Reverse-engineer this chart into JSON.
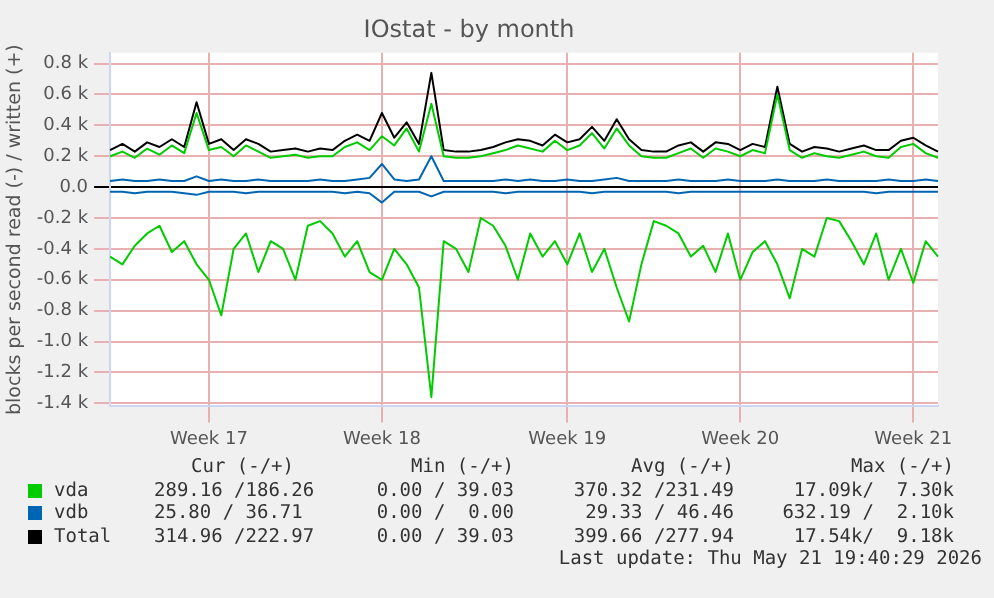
{
  "chart_data": {
    "type": "line",
    "title": "IOstat - by month",
    "ylabel": "blocks per second read (-) / written (+)",
    "categories": [
      null,
      null,
      null,
      null,
      null,
      null,
      null,
      null,
      "Week 17",
      null,
      null,
      null,
      null,
      null,
      null,
      null,
      null,
      null,
      null,
      null,
      null,
      null,
      "Week 18",
      null,
      null,
      null,
      null,
      null,
      null,
      null,
      null,
      null,
      null,
      null,
      null,
      null,
      null,
      "Week 19",
      null,
      null,
      null,
      null,
      null,
      null,
      null,
      null,
      null,
      null,
      null,
      null,
      null,
      "Week 20",
      null,
      null,
      null,
      null,
      null,
      null,
      null,
      null,
      null,
      null,
      null,
      null,
      null,
      "Week 21",
      null,
      null
    ],
    "ylim": [
      -1.42,
      0.87
    ],
    "yticks": [
      {
        "value": -1.4,
        "label": "-1.4 k"
      },
      {
        "value": -1.2,
        "label": "-1.2 k"
      },
      {
        "value": -1.0,
        "label": "-1.0 k"
      },
      {
        "value": -0.8,
        "label": "-0.8 k"
      },
      {
        "value": -0.6,
        "label": "-0.6 k"
      },
      {
        "value": -0.4,
        "label": "-0.4 k"
      },
      {
        "value": -0.2,
        "label": "-0.2 k"
      },
      {
        "value": 0,
        "label": "0.0"
      },
      {
        "value": 0.2,
        "label": "0.2 k"
      },
      {
        "value": 0.4,
        "label": "0.4 k"
      },
      {
        "value": 0.6,
        "label": "0.6 k"
      },
      {
        "value": 0.8,
        "label": "0.8 k"
      }
    ],
    "grid": true,
    "legend": "bottom",
    "marker": "none",
    "line_style": "solid",
    "series": [
      {
        "name": "vda",
        "color": "#00cc00",
        "values": [
          0.2,
          0.23,
          0.19,
          0.25,
          0.21,
          0.27,
          0.22,
          0.48,
          0.24,
          0.26,
          0.2,
          0.27,
          0.23,
          0.19,
          0.2,
          0.21,
          0.19,
          0.2,
          0.2,
          0.26,
          0.29,
          0.24,
          0.33,
          0.27,
          0.38,
          0.23,
          0.54,
          0.2,
          0.19,
          0.19,
          0.2,
          0.22,
          0.24,
          0.27,
          0.25,
          0.23,
          0.3,
          0.24,
          0.27,
          0.35,
          0.25,
          0.38,
          0.27,
          0.2,
          0.19,
          0.19,
          0.22,
          0.25,
          0.19,
          0.25,
          0.23,
          0.2,
          0.24,
          0.22,
          0.6,
          0.24,
          0.19,
          0.22,
          0.2,
          0.19,
          0.21,
          0.23,
          0.2,
          0.19,
          0.26,
          0.28,
          0.22,
          0.19
        ]
      },
      {
        "color": "#00cc00",
        "values": [
          -0.45,
          -0.5,
          -0.38,
          -0.3,
          -0.25,
          -0.42,
          -0.35,
          -0.5,
          -0.6,
          -0.83,
          -0.4,
          -0.3,
          -0.55,
          -0.35,
          -0.4,
          -0.6,
          -0.25,
          -0.22,
          -0.3,
          -0.45,
          -0.35,
          -0.55,
          -0.6,
          -0.4,
          -0.5,
          -0.65,
          -1.36,
          -0.35,
          -0.4,
          -0.55,
          -0.2,
          -0.25,
          -0.38,
          -0.6,
          -0.3,
          -0.45,
          -0.35,
          -0.5,
          -0.3,
          -0.55,
          -0.4,
          -0.65,
          -0.87,
          -0.5,
          -0.22,
          -0.25,
          -0.3,
          -0.45,
          -0.38,
          -0.55,
          -0.3,
          -0.6,
          -0.42,
          -0.35,
          -0.5,
          -0.72,
          -0.4,
          -0.45,
          -0.2,
          -0.22,
          -0.35,
          -0.5,
          -0.3,
          -0.6,
          -0.4,
          -0.62,
          -0.35,
          -0.45
        ]
      },
      {
        "name": "vdb",
        "color": "#0066b3",
        "values": [
          0.04,
          0.05,
          0.04,
          0.04,
          0.05,
          0.04,
          0.04,
          0.07,
          0.04,
          0.05,
          0.04,
          0.04,
          0.05,
          0.04,
          0.04,
          0.04,
          0.04,
          0.05,
          0.04,
          0.04,
          0.05,
          0.06,
          0.15,
          0.05,
          0.04,
          0.05,
          0.2,
          0.04,
          0.04,
          0.04,
          0.04,
          0.04,
          0.05,
          0.04,
          0.05,
          0.04,
          0.04,
          0.05,
          0.04,
          0.04,
          0.05,
          0.06,
          0.04,
          0.04,
          0.04,
          0.04,
          0.05,
          0.04,
          0.04,
          0.04,
          0.05,
          0.04,
          0.04,
          0.04,
          0.05,
          0.04,
          0.04,
          0.04,
          0.05,
          0.04,
          0.04,
          0.04,
          0.04,
          0.05,
          0.04,
          0.04,
          0.05,
          0.04
        ]
      },
      {
        "color": "#0066b3",
        "values": [
          -0.03,
          -0.03,
          -0.04,
          -0.03,
          -0.03,
          -0.03,
          -0.04,
          -0.05,
          -0.03,
          -0.03,
          -0.03,
          -0.04,
          -0.03,
          -0.03,
          -0.03,
          -0.03,
          -0.03,
          -0.03,
          -0.03,
          -0.04,
          -0.03,
          -0.04,
          -0.1,
          -0.03,
          -0.03,
          -0.03,
          -0.06,
          -0.03,
          -0.03,
          -0.03,
          -0.03,
          -0.03,
          -0.04,
          -0.03,
          -0.03,
          -0.03,
          -0.03,
          -0.03,
          -0.03,
          -0.04,
          -0.03,
          -0.03,
          -0.03,
          -0.03,
          -0.03,
          -0.03,
          -0.04,
          -0.03,
          -0.03,
          -0.03,
          -0.03,
          -0.03,
          -0.03,
          -0.03,
          -0.03,
          -0.03,
          -0.03,
          -0.03,
          -0.03,
          -0.03,
          -0.03,
          -0.03,
          -0.04,
          -0.03,
          -0.03,
          -0.03,
          -0.03,
          -0.03
        ]
      },
      {
        "name": "Total",
        "color": "#000000",
        "values": [
          0.24,
          0.28,
          0.23,
          0.29,
          0.26,
          0.31,
          0.26,
          0.55,
          0.28,
          0.31,
          0.24,
          0.31,
          0.28,
          0.23,
          0.24,
          0.25,
          0.23,
          0.25,
          0.24,
          0.3,
          0.34,
          0.3,
          0.48,
          0.32,
          0.42,
          0.28,
          0.74,
          0.24,
          0.23,
          0.23,
          0.24,
          0.26,
          0.29,
          0.31,
          0.3,
          0.27,
          0.34,
          0.29,
          0.31,
          0.39,
          0.3,
          0.44,
          0.31,
          0.24,
          0.23,
          0.23,
          0.27,
          0.29,
          0.23,
          0.29,
          0.28,
          0.24,
          0.28,
          0.26,
          0.65,
          0.28,
          0.23,
          0.26,
          0.25,
          0.23,
          0.25,
          0.27,
          0.24,
          0.24,
          0.3,
          0.32,
          0.27,
          0.23
        ]
      }
    ],
    "annotations": [
      "Cur (-/+)",
      "Min (-/+)",
      "Avg (-/+)",
      "Max (-/+)",
      "289.16 /186.26",
      "0.00 / 39.03",
      "370.32 /231.49",
      "17.09k/  7.30k",
      "25.80 / 36.71",
      "0.00 /  0.00",
      "29.33 / 46.46",
      "632.19 /  2.10k",
      "314.96 /222.97",
      "0.00 / 39.03",
      "399.66 /277.94",
      "17.54k/  9.18k",
      "Last update: Thu May 21 19:40:29 2026"
    ]
  }
}
